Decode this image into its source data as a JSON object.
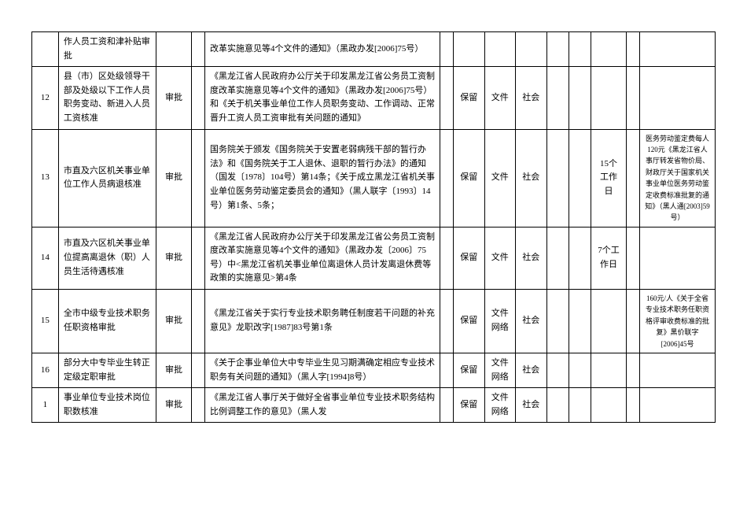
{
  "rows": [
    {
      "num": "",
      "name": "作人员工资和津补贴审批",
      "type": "",
      "basis": "改革实施意见等4个文件的通知》（黑政办发[2006]75号）",
      "keep": "",
      "form": "",
      "target": "",
      "days": "",
      "note": ""
    },
    {
      "num": "12",
      "name": "县（市）区处级领导干部及处级以下工作人员职务变动、新进入人员工资核准",
      "type": "审批",
      "basis": "《黑龙江省人民政府办公厅关于印发黑龙江省公务员工资制度改革实施意见等4个文件的通知》（黑政办发[2006]75号）和《关于机关事业单位工作人员职务变动、工作调动、正常晋升工资人员工资审批有关问题的通知》",
      "keep": "保留",
      "form": "文件",
      "target": "社会",
      "days": "",
      "note": ""
    },
    {
      "num": "13",
      "name": "市直及六区机关事业单位工作人员病退核准",
      "type": "审批",
      "basis": "国务院关于颁发《国务院关于安置老弱病残干部的暂行办法》和《国务院关于工人退休、退职的暂行办法》的通知（国发〔1978〕104号）第14条；《关于成立黑龙江省机关事业单位医务劳动鉴定委员会的通知》（黑人联字〔1993〕14号）第1条、5条；",
      "keep": "保留",
      "form": "文件",
      "target": "社会",
      "days": "15个工作日",
      "note": "医务劳动鉴定费每人120元《黑龙江省人事厅转发省物价局、财政厅关于国家机关事业单位医务劳动鉴定收费标准批复的通知》（黑人通[2003]59号）"
    },
    {
      "num": "14",
      "name": "市直及六区机关事业单位提高离退休（职）人员生活待遇核准",
      "type": "审批",
      "basis": "《黑龙江省人民政府办公厅关于印发黑龙江省公务员工资制度改革实施意见等4个文件的通知》（黑政办发〔2006〕75号）中<黑龙江省机关事业单位离退休人员计发离退休费等政策的实施意见>第4条",
      "keep": "保留",
      "form": "文件",
      "target": "社会",
      "days": "7个工作日",
      "note": ""
    },
    {
      "num": "15",
      "name": "全市中级专业技术职务任职资格审批",
      "type": "审批",
      "basis": "《黑龙江省关于实行专业技术职务聘任制度若干问题的补充意见》龙职改字[1987]83号第1条",
      "keep": "保留",
      "form": "文件网络",
      "target": "社会",
      "days": "",
      "note": "160元/人《关于全省专业技术职务任职资格评审收费标准的批复》黑价联字[2006]45号"
    },
    {
      "num": "16",
      "name": "部分大中专毕业生转正定级定职审批",
      "type": "审批",
      "basis": "《关于企事业单位大中专毕业生见习期满确定相应专业技术职务有关问题的通知》（黑人字[1994]8号）",
      "keep": "保留",
      "form": "文件网络",
      "target": "社会",
      "days": "",
      "note": ""
    },
    {
      "num": "1",
      "name": "事业单位专业技术岗位职数核准",
      "type": "审批",
      "basis": "《黑龙江省人事厅关于做好全省事业单位专业技术职务结构比例调整工作的意见》（黑人发",
      "keep": "保留",
      "form": "文件网络",
      "target": "社会",
      "days": "",
      "note": ""
    }
  ]
}
